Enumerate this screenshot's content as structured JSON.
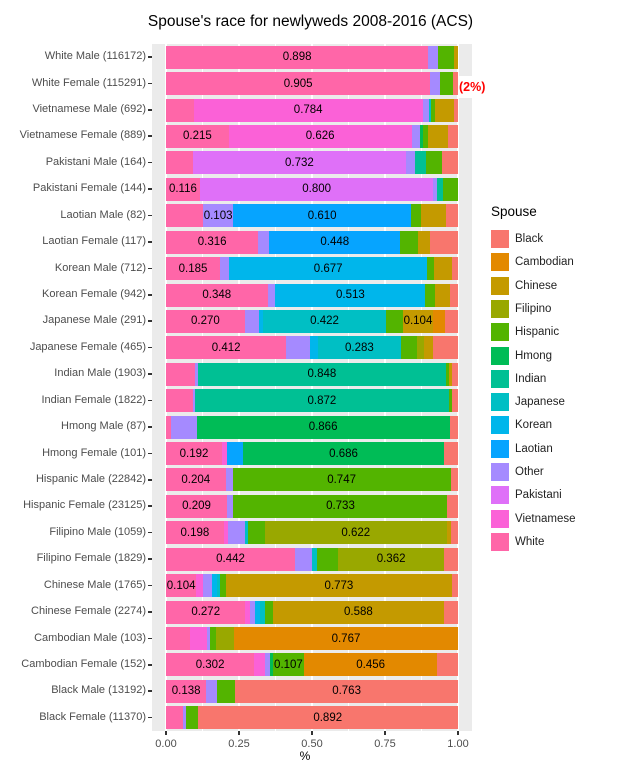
{
  "title": "Spouse's race for newlyweds 2008-2016 (ACS)",
  "annotation": {
    "text": "(2%)",
    "color": "#FF0000",
    "attached_row": "White Female (115291)"
  },
  "axis": {
    "x_title": "%",
    "x_ticks": [
      {
        "label": "0.00",
        "value": 0
      },
      {
        "label": "0.25",
        "value": 0.25
      },
      {
        "label": "0.50",
        "value": 0.5
      },
      {
        "label": "0.75",
        "value": 0.75
      },
      {
        "label": "1.00",
        "value": 1
      }
    ],
    "x_minor_values": [
      0.125,
      0.375,
      0.625,
      0.875
    ],
    "xlim": [
      0,
      1
    ]
  },
  "legend": {
    "title": "Spouse",
    "entries": [
      {
        "label": "Black",
        "color": "#F8766D"
      },
      {
        "label": "Cambodian",
        "color": "#E38900"
      },
      {
        "label": "Chinese",
        "color": "#C49A00"
      },
      {
        "label": "Filipino",
        "color": "#99A800"
      },
      {
        "label": "Hispanic",
        "color": "#53B400"
      },
      {
        "label": "Hmong",
        "color": "#00BC56"
      },
      {
        "label": "Indian",
        "color": "#00C094"
      },
      {
        "label": "Japanese",
        "color": "#00BFC4"
      },
      {
        "label": "Korean",
        "color": "#00B6EB"
      },
      {
        "label": "Laotian",
        "color": "#06A4FF"
      },
      {
        "label": "Other",
        "color": "#A58AFF"
      },
      {
        "label": "Pakistani",
        "color": "#DF70F8"
      },
      {
        "label": "Vietnamese",
        "color": "#FB61D7"
      },
      {
        "label": "White",
        "color": "#FF66A8"
      }
    ]
  },
  "chart_data": {
    "type": "bar",
    "orientation": "horizontal-stacked",
    "title": "Spouse's race for newlyweds 2008-2016 (ACS)",
    "xlabel": "%",
    "xlim": [
      0,
      1
    ],
    "stack_order_left_to_right": [
      "White",
      "Vietnamese",
      "Pakistani",
      "Other",
      "Laotian",
      "Korean",
      "Japanese",
      "Indian",
      "Hmong",
      "Hispanic",
      "Filipino",
      "Chinese",
      "Cambodian",
      "Black"
    ],
    "rows": [
      {
        "label": "White Male (116172)",
        "segments": [
          {
            "race": "White",
            "value": 0.898,
            "label": "0.898"
          },
          {
            "race": "Other",
            "value": 0.035
          },
          {
            "race": "Hispanic",
            "value": 0.053
          },
          {
            "race": "Chinese",
            "value": 0.014
          }
        ]
      },
      {
        "label": "White Female (115291)",
        "segments": [
          {
            "race": "White",
            "value": 0.905,
            "label": "0.905"
          },
          {
            "race": "Other",
            "value": 0.034
          },
          {
            "race": "Hispanic",
            "value": 0.043
          },
          {
            "race": "Black",
            "value": 0.018
          }
        ]
      },
      {
        "label": "Vietnamese Male (692)",
        "segments": [
          {
            "race": "White",
            "value": 0.095
          },
          {
            "race": "Vietnamese",
            "value": 0.784,
            "label": "0.784"
          },
          {
            "race": "Other",
            "value": 0.022
          },
          {
            "race": "Japanese",
            "value": 0.008
          },
          {
            "race": "Hispanic",
            "value": 0.013
          },
          {
            "race": "Chinese",
            "value": 0.066
          },
          {
            "race": "Black",
            "value": 0.012
          }
        ]
      },
      {
        "label": "Vietnamese Female (889)",
        "segments": [
          {
            "race": "White",
            "value": 0.215,
            "label": "0.215"
          },
          {
            "race": "Vietnamese",
            "value": 0.626,
            "label": "0.626"
          },
          {
            "race": "Other",
            "value": 0.028
          },
          {
            "race": "Hmong",
            "value": 0.01
          },
          {
            "race": "Hispanic",
            "value": 0.018
          },
          {
            "race": "Chinese",
            "value": 0.07
          },
          {
            "race": "Black",
            "value": 0.033
          }
        ]
      },
      {
        "label": "Pakistani Male (164)",
        "segments": [
          {
            "race": "White",
            "value": 0.091
          },
          {
            "race": "Pakistani",
            "value": 0.732,
            "label": "0.732"
          },
          {
            "race": "Other",
            "value": 0.03
          },
          {
            "race": "Indian",
            "value": 0.037
          },
          {
            "race": "Hispanic",
            "value": 0.055
          },
          {
            "race": "Black",
            "value": 0.055
          }
        ]
      },
      {
        "label": "Pakistani Female (144)",
        "segments": [
          {
            "race": "White",
            "value": 0.116,
            "label": "0.116"
          },
          {
            "race": "Pakistani",
            "value": 0.8,
            "label": "0.800"
          },
          {
            "race": "Other",
            "value": 0.012
          },
          {
            "race": "Indian",
            "value": 0.02
          },
          {
            "race": "Hispanic",
            "value": 0.052
          }
        ]
      },
      {
        "label": "Laotian Male (82)",
        "segments": [
          {
            "race": "White",
            "value": 0.127
          },
          {
            "race": "Other",
            "value": 0.103,
            "label": "0.103"
          },
          {
            "race": "Laotian",
            "value": 0.61,
            "label": "0.610"
          },
          {
            "race": "Hispanic",
            "value": 0.035
          },
          {
            "race": "Chinese",
            "value": 0.085
          },
          {
            "race": "Black",
            "value": 0.04
          }
        ]
      },
      {
        "label": "Laotian Female (117)",
        "segments": [
          {
            "race": "White",
            "value": 0.316,
            "label": "0.316"
          },
          {
            "race": "Other",
            "value": 0.038
          },
          {
            "race": "Laotian",
            "value": 0.448,
            "label": "0.448"
          },
          {
            "race": "Hispanic",
            "value": 0.06
          },
          {
            "race": "Chinese",
            "value": 0.043
          },
          {
            "race": "Black",
            "value": 0.095
          }
        ]
      },
      {
        "label": "Korean Male (712)",
        "segments": [
          {
            "race": "White",
            "value": 0.185,
            "label": "0.185"
          },
          {
            "race": "Other",
            "value": 0.032
          },
          {
            "race": "Korean",
            "value": 0.677,
            "label": "0.677"
          },
          {
            "race": "Hispanic",
            "value": 0.024
          },
          {
            "race": "Chinese",
            "value": 0.06
          },
          {
            "race": "Black",
            "value": 0.022
          }
        ]
      },
      {
        "label": "Korean Female (942)",
        "segments": [
          {
            "race": "White",
            "value": 0.348,
            "label": "0.348"
          },
          {
            "race": "Other",
            "value": 0.027
          },
          {
            "race": "Korean",
            "value": 0.513,
            "label": "0.513"
          },
          {
            "race": "Hispanic",
            "value": 0.033
          },
          {
            "race": "Chinese",
            "value": 0.051
          },
          {
            "race": "Black",
            "value": 0.028
          }
        ]
      },
      {
        "label": "Japanese Male (291)",
        "segments": [
          {
            "race": "White",
            "value": 0.27,
            "label": "0.270"
          },
          {
            "race": "Other",
            "value": 0.05
          },
          {
            "race": "Korean",
            "value": 0.012
          },
          {
            "race": "Japanese",
            "value": 0.422,
            "label": "0.422"
          },
          {
            "race": "Hispanic",
            "value": 0.057
          },
          {
            "race": "Chinese",
            "value": 0.104,
            "label": "0.104"
          },
          {
            "race": "Cambodian",
            "value": 0.04
          },
          {
            "race": "Black",
            "value": 0.045
          }
        ]
      },
      {
        "label": "Japanese Female (465)",
        "segments": [
          {
            "race": "White",
            "value": 0.412,
            "label": "0.412"
          },
          {
            "race": "Other",
            "value": 0.081
          },
          {
            "race": "Korean",
            "value": 0.028
          },
          {
            "race": "Japanese",
            "value": 0.283,
            "label": "0.283"
          },
          {
            "race": "Hispanic",
            "value": 0.054
          },
          {
            "race": "Filipino",
            "value": 0.025
          },
          {
            "race": "Chinese",
            "value": 0.03
          },
          {
            "race": "Black",
            "value": 0.087
          }
        ]
      },
      {
        "label": "Indian Male (1903)",
        "segments": [
          {
            "race": "White",
            "value": 0.099
          },
          {
            "race": "Other",
            "value": 0.011
          },
          {
            "race": "Indian",
            "value": 0.848,
            "label": "0.848"
          },
          {
            "race": "Hispanic",
            "value": 0.01
          },
          {
            "race": "Chinese",
            "value": 0.012
          },
          {
            "race": "Black",
            "value": 0.02
          }
        ]
      },
      {
        "label": "Indian Female (1822)",
        "segments": [
          {
            "race": "White",
            "value": 0.091
          },
          {
            "race": "Other",
            "value": 0.007
          },
          {
            "race": "Indian",
            "value": 0.872,
            "label": "0.872"
          },
          {
            "race": "Hispanic",
            "value": 0.011
          },
          {
            "race": "Black",
            "value": 0.019
          }
        ]
      },
      {
        "label": "Hmong Male (87)",
        "segments": [
          {
            "race": "White",
            "value": 0.016
          },
          {
            "race": "Other",
            "value": 0.089
          },
          {
            "race": "Hmong",
            "value": 0.866,
            "label": "0.866"
          },
          {
            "race": "Black",
            "value": 0.029
          }
        ]
      },
      {
        "label": "Hmong Female (101)",
        "segments": [
          {
            "race": "White",
            "value": 0.192,
            "label": "0.192"
          },
          {
            "race": "Vietnamese",
            "value": 0.018
          },
          {
            "race": "Laotian",
            "value": 0.055
          },
          {
            "race": "Hmong",
            "value": 0.686,
            "label": "0.686"
          },
          {
            "race": "Black",
            "value": 0.049
          }
        ]
      },
      {
        "label": "Hispanic Male (22842)",
        "segments": [
          {
            "race": "White",
            "value": 0.204,
            "label": "0.204"
          },
          {
            "race": "Other",
            "value": 0.024
          },
          {
            "race": "Hispanic",
            "value": 0.747,
            "label": "0.747"
          },
          {
            "race": "Black",
            "value": 0.025
          }
        ]
      },
      {
        "label": "Hispanic Female (23125)",
        "segments": [
          {
            "race": "White",
            "value": 0.209,
            "label": "0.209"
          },
          {
            "race": "Other",
            "value": 0.022
          },
          {
            "race": "Hispanic",
            "value": 0.733,
            "label": "0.733"
          },
          {
            "race": "Black",
            "value": 0.036
          }
        ]
      },
      {
        "label": "Filipino Male (1059)",
        "segments": [
          {
            "race": "White",
            "value": 0.198,
            "label": "0.198"
          },
          {
            "race": "Vietnamese",
            "value": 0.014
          },
          {
            "race": "Other",
            "value": 0.057
          },
          {
            "race": "Japanese",
            "value": 0.013
          },
          {
            "race": "Hispanic",
            "value": 0.057
          },
          {
            "race": "Filipino",
            "value": 0.622,
            "label": "0.622"
          },
          {
            "race": "Chinese",
            "value": 0.015
          },
          {
            "race": "Black",
            "value": 0.024
          }
        ]
      },
      {
        "label": "Filipino Female (1829)",
        "segments": [
          {
            "race": "White",
            "value": 0.442,
            "label": "0.442"
          },
          {
            "race": "Other",
            "value": 0.059
          },
          {
            "race": "Japanese",
            "value": 0.015
          },
          {
            "race": "Hispanic",
            "value": 0.074
          },
          {
            "race": "Filipino",
            "value": 0.362,
            "label": "0.362"
          },
          {
            "race": "Black",
            "value": 0.048
          }
        ]
      },
      {
        "label": "Chinese Male (1765)",
        "segments": [
          {
            "race": "White",
            "value": 0.104,
            "label": "0.104"
          },
          {
            "race": "Vietnamese",
            "value": 0.024
          },
          {
            "race": "Other",
            "value": 0.029
          },
          {
            "race": "Korean",
            "value": 0.017
          },
          {
            "race": "Japanese",
            "value": 0.011
          },
          {
            "race": "Hispanic",
            "value": 0.021
          },
          {
            "race": "Chinese",
            "value": 0.773,
            "label": "0.773"
          },
          {
            "race": "Black",
            "value": 0.021
          }
        ]
      },
      {
        "label": "Chinese Female (2274)",
        "segments": [
          {
            "race": "White",
            "value": 0.272,
            "label": "0.272"
          },
          {
            "race": "Vietnamese",
            "value": 0.016
          },
          {
            "race": "Other",
            "value": 0.017
          },
          {
            "race": "Korean",
            "value": 0.017
          },
          {
            "race": "Japanese",
            "value": 0.017
          },
          {
            "race": "Hispanic",
            "value": 0.026
          },
          {
            "race": "Chinese",
            "value": 0.588,
            "label": "0.588"
          },
          {
            "race": "Black",
            "value": 0.047
          }
        ]
      },
      {
        "label": "Cambodian Male (103)",
        "segments": [
          {
            "race": "White",
            "value": 0.082
          },
          {
            "race": "Vietnamese",
            "value": 0.059
          },
          {
            "race": "Other",
            "value": 0.009
          },
          {
            "race": "Hispanic",
            "value": 0.023
          },
          {
            "race": "Filipino",
            "value": 0.06
          },
          {
            "race": "Cambodian",
            "value": 0.767,
            "label": "0.767"
          }
        ]
      },
      {
        "label": "Cambodian Female (152)",
        "segments": [
          {
            "race": "White",
            "value": 0.302,
            "label": "0.302"
          },
          {
            "race": "Vietnamese",
            "value": 0.037
          },
          {
            "race": "Other",
            "value": 0.017
          },
          {
            "race": "Hmong",
            "value": 0.01
          },
          {
            "race": "Hispanic",
            "value": 0.107,
            "label": "0.107"
          },
          {
            "race": "Cambodian",
            "value": 0.456,
            "label": "0.456"
          },
          {
            "race": "Black",
            "value": 0.071
          }
        ]
      },
      {
        "label": "Black Male (13192)",
        "segments": [
          {
            "race": "White",
            "value": 0.138,
            "label": "0.138"
          },
          {
            "race": "Other",
            "value": 0.035
          },
          {
            "race": "Hispanic",
            "value": 0.064
          },
          {
            "race": "Black",
            "value": 0.763,
            "label": "0.763"
          }
        ]
      },
      {
        "label": "Black Female (11370)",
        "segments": [
          {
            "race": "White",
            "value": 0.059
          },
          {
            "race": "Other",
            "value": 0.011
          },
          {
            "race": "Hispanic",
            "value": 0.038
          },
          {
            "race": "Black",
            "value": 0.892,
            "label": "0.892"
          }
        ]
      }
    ]
  }
}
